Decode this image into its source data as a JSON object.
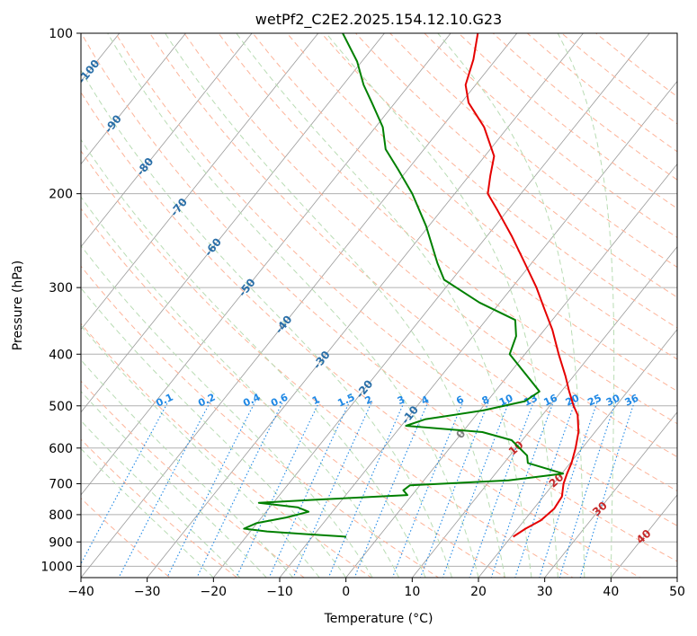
{
  "chart_data": {
    "type": "line",
    "subtype": "skew-T log-P diagram",
    "title": "wetPf2_C2E2.2025.154.12.10.G23",
    "xlabel": "Temperature (°C)",
    "ylabel": "Pressure (hPa)",
    "xlim": [
      -40,
      50
    ],
    "ylim": [
      1050,
      100
    ],
    "y_scale": "log",
    "x_ticks": [
      -40,
      -30,
      -20,
      -10,
      0,
      10,
      20,
      30,
      40,
      50
    ],
    "x_tick_labels": [
      "−40",
      "−30",
      "−20",
      "−10",
      "0",
      "10",
      "20",
      "30",
      "40",
      "50"
    ],
    "y_ticks": [
      100,
      200,
      300,
      400,
      500,
      600,
      700,
      800,
      900,
      1000
    ],
    "y_tick_labels": [
      "100",
      "200",
      "300",
      "400",
      "500",
      "600",
      "700",
      "800",
      "900",
      "1000"
    ],
    "grid": true,
    "colors": {
      "temperature": "#e50000",
      "dewpoint": "#008000",
      "isotherm": "#999999",
      "dry_adiabat": "#fdb49a",
      "moist_adiabat": "#b9dcb4",
      "mixing_ratio": "#1e88e5",
      "isotherm_label": "#2a6fa8",
      "dry_adiabat_label": "#c62828",
      "zero_label": "#808080"
    },
    "series": [
      {
        "role": "temperature",
        "color": "#e50000",
        "points": [
          {
            "p": 880,
            "t": 20.3
          },
          {
            "p": 850,
            "t": 21.2
          },
          {
            "p": 820,
            "t": 22.5
          },
          {
            "p": 780,
            "t": 23.1
          },
          {
            "p": 740,
            "t": 22.8
          },
          {
            "p": 700,
            "t": 21.5
          },
          {
            "p": 670,
            "t": 20.8
          },
          {
            "p": 640,
            "t": 20.2
          },
          {
            "p": 600,
            "t": 19.0
          },
          {
            "p": 560,
            "t": 17.5
          },
          {
            "p": 520,
            "t": 15.3
          },
          {
            "p": 500,
            "t": 13.6
          },
          {
            "p": 470,
            "t": 11.2
          },
          {
            "p": 440,
            "t": 8.8
          },
          {
            "p": 400,
            "t": 5.1
          },
          {
            "p": 360,
            "t": 1.2
          },
          {
            "p": 330,
            "t": -2.4
          },
          {
            "p": 300,
            "t": -6.3
          },
          {
            "p": 270,
            "t": -11.0
          },
          {
            "p": 240,
            "t": -16.3
          },
          {
            "p": 215,
            "t": -21.5
          },
          {
            "p": 200,
            "t": -25.0
          },
          {
            "p": 185,
            "t": -26.8
          },
          {
            "p": 170,
            "t": -28.6
          },
          {
            "p": 150,
            "t": -33.6
          },
          {
            "p": 135,
            "t": -38.9
          },
          {
            "p": 125,
            "t": -41.5
          },
          {
            "p": 112,
            "t": -43.4
          },
          {
            "p": 100,
            "t": -45.9
          }
        ]
      },
      {
        "role": "dewpoint",
        "color": "#008000",
        "points": [
          {
            "p": 880,
            "t": -4.9
          },
          {
            "p": 870,
            "t": -11.5
          },
          {
            "p": 860,
            "t": -17.5
          },
          {
            "p": 850,
            "t": -21.3
          },
          {
            "p": 830,
            "t": -20.1
          },
          {
            "p": 810,
            "t": -16.3
          },
          {
            "p": 790,
            "t": -13.6
          },
          {
            "p": 775,
            "t": -15.8
          },
          {
            "p": 760,
            "t": -22.2
          },
          {
            "p": 750,
            "t": -13.9
          },
          {
            "p": 735,
            "t": -0.7
          },
          {
            "p": 720,
            "t": -1.9
          },
          {
            "p": 705,
            "t": -1.5
          },
          {
            "p": 690,
            "t": 12.8
          },
          {
            "p": 670,
            "t": 20.2
          },
          {
            "p": 640,
            "t": 13.6
          },
          {
            "p": 620,
            "t": 12.6
          },
          {
            "p": 580,
            "t": 8.4
          },
          {
            "p": 560,
            "t": 3.0
          },
          {
            "p": 545,
            "t": -9.3
          },
          {
            "p": 530,
            "t": -7.2
          },
          {
            "p": 510,
            "t": 0.5
          },
          {
            "p": 490,
            "t": 5.7
          },
          {
            "p": 470,
            "t": 6.7
          },
          {
            "p": 450,
            "t": 4.3
          },
          {
            "p": 400,
            "t": -2.3
          },
          {
            "p": 370,
            "t": -3.5
          },
          {
            "p": 345,
            "t": -5.6
          },
          {
            "p": 320,
            "t": -13.1
          },
          {
            "p": 290,
            "t": -21.2
          },
          {
            "p": 270,
            "t": -24.2
          },
          {
            "p": 230,
            "t": -30.4
          },
          {
            "p": 200,
            "t": -36.4
          },
          {
            "p": 180,
            "t": -41.5
          },
          {
            "p": 165,
            "t": -45.8
          },
          {
            "p": 150,
            "t": -48.9
          },
          {
            "p": 135,
            "t": -53.5
          },
          {
            "p": 125,
            "t": -56.9
          },
          {
            "p": 113,
            "t": -60.7
          },
          {
            "p": 100,
            "t": -66.3
          }
        ]
      }
    ],
    "isotherm_labels": [
      "-100",
      "-90",
      "-80",
      "-70",
      "-60",
      "-50",
      "-40",
      "-30",
      "-20",
      "-10",
      "0"
    ],
    "dry_adiabat_labels": [
      "10",
      "20",
      "30",
      "40"
    ],
    "mixing_ratio_labels": [
      "0.1",
      "0.2",
      "0.4",
      "0.6",
      "1",
      "1.5",
      "2",
      "3",
      "4",
      "6",
      "8",
      "10",
      "13",
      "16",
      "20",
      "25",
      "30",
      "36"
    ]
  }
}
